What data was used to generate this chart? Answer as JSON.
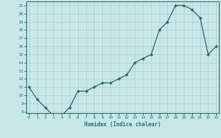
{
  "xlabel": "Humidex (Indice chaleur)",
  "x_values": [
    0,
    1,
    2,
    3,
    4,
    5,
    6,
    7,
    8,
    9,
    10,
    11,
    12,
    13,
    14,
    15,
    16,
    17,
    18,
    19,
    20,
    21,
    22,
    23
  ],
  "y_values": [
    11,
    9.5,
    8.5,
    7.5,
    7.5,
    8.5,
    10.5,
    10.5,
    11.0,
    11.5,
    11.5,
    12.0,
    12.5,
    14.0,
    14.5,
    15.0,
    18.0,
    19.0,
    21.0,
    21.0,
    20.5,
    19.5,
    15.0,
    16.0
  ],
  "yticks": [
    8,
    9,
    10,
    11,
    12,
    13,
    14,
    15,
    16,
    17,
    18,
    19,
    20,
    21
  ],
  "xticks": [
    0,
    1,
    2,
    3,
    4,
    5,
    6,
    7,
    8,
    9,
    10,
    11,
    12,
    13,
    14,
    15,
    16,
    17,
    18,
    19,
    20,
    21,
    22,
    23
  ],
  "line_color": "#2e6b6b",
  "marker": "D",
  "marker_size": 2.0,
  "bg_color": "#c8e8e8",
  "grid_color": "#a8cece",
  "tick_label_color": "#2e6b6b",
  "axis_label_color": "#2e6b6b",
  "line_width": 1.0,
  "xlim_min": -0.3,
  "xlim_max": 23.3,
  "ylim_min": 7.8,
  "ylim_max": 21.5
}
